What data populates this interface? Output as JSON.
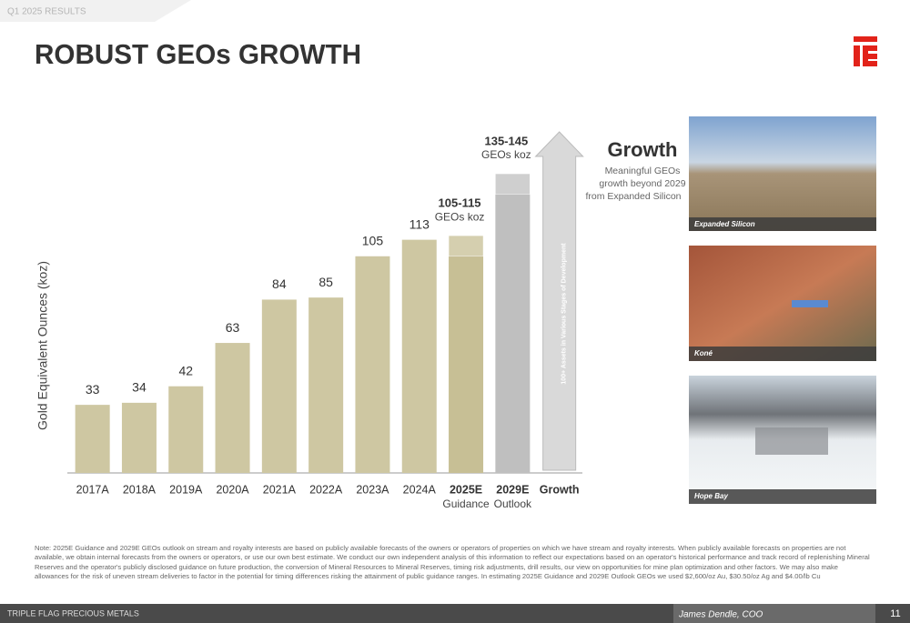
{
  "header": {
    "section": "Q1 2025 RESULTS",
    "title": "ROBUST GEOs GROWTH"
  },
  "chart_data": {
    "type": "bar",
    "ylabel": "Gold Equivalent Ounces (koz)",
    "categories": [
      "2017A",
      "2018A",
      "2019A",
      "2020A",
      "2021A",
      "2022A",
      "2023A",
      "2024A",
      "2025E",
      "2029E",
      "Growth"
    ],
    "sublabels": [
      null,
      null,
      null,
      null,
      null,
      null,
      null,
      null,
      "Guidance",
      "Outlook",
      null
    ],
    "values": [
      33,
      34,
      42,
      63,
      84,
      85,
      105,
      113,
      null,
      null,
      null
    ],
    "range_low": [
      null,
      null,
      null,
      null,
      null,
      null,
      null,
      null,
      105,
      135,
      null
    ],
    "range_high": [
      null,
      null,
      null,
      null,
      null,
      null,
      null,
      null,
      115,
      145,
      null
    ],
    "range_labels": [
      null,
      null,
      null,
      null,
      null,
      null,
      null,
      null,
      "105-115",
      "135-145",
      null
    ],
    "range_unit": "GEOs koz",
    "color": "#cec7a2",
    "guidance_color": "#c7bf95",
    "outlook_color": "#bfbfbf",
    "ylim": [
      0,
      160
    ]
  },
  "arrow_label": "100+ Assets in Various Stages of Development",
  "growth": {
    "title": "Growth",
    "lines": [
      "Meaningful GEOs",
      "growth beyond 2029",
      "from Expanded Silicon"
    ]
  },
  "photos": [
    {
      "caption": "Expanded Silicon"
    },
    {
      "caption": "Koné"
    },
    {
      "caption": "Hope Bay"
    }
  ],
  "note": "Note: 2025E Guidance and 2029E GEOs outlook on stream and royalty interests are based on publicly available forecasts of the owners or operators of properties on which we have stream and royalty interests. When publicly available forecasts on properties are not available, we obtain internal forecasts from the owners or operators, or use our own best estimate. We conduct our own independent analysis of this information to reflect our expectations based on an operator's historical performance and track record of replenishing Mineral Reserves and the operator's publicly disclosed guidance on future production, the conversion of Mineral Resources to Mineral Reserves, timing risk adjustments, drill results, our view on opportunities for mine plan optimization and other factors. We may also make allowances for the risk of uneven stream deliveries to factor in the potential for timing differences risking the attainment of public guidance ranges. In estimating 2025E Guidance and 2029E Outlook GEOs we used $2,600/oz Au, $30.50/oz Ag and $4.00/lb Cu",
  "footer": {
    "company": "TRIPLE FLAG PRECIOUS METALS",
    "presenter": "James Dendle, COO",
    "page": "11"
  }
}
